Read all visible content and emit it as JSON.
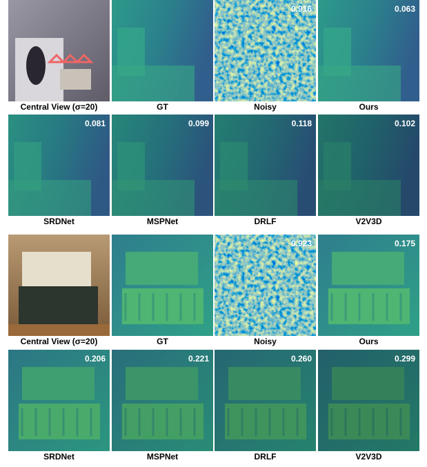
{
  "figure": {
    "rows": [
      {
        "panels": [
          {
            "caption": "Central View (σ=20)"
          },
          {
            "caption": "GT"
          },
          {
            "caption": "Noisy",
            "score": "0.916"
          },
          {
            "caption": "Ours",
            "score": "0.063"
          }
        ]
      },
      {
        "panels": [
          {
            "caption": "SRDNet",
            "score": "0.081"
          },
          {
            "caption": "MSPNet",
            "score": "0.099"
          },
          {
            "caption": "DRLF",
            "score": "0.118"
          },
          {
            "caption": "V2V3D",
            "score": "0.102"
          }
        ]
      },
      {
        "panels": [
          {
            "caption": "Central View (σ=20)"
          },
          {
            "caption": "GT"
          },
          {
            "caption": "Noisy",
            "score": "0.923"
          },
          {
            "caption": "Ours",
            "score": "0.175"
          }
        ]
      },
      {
        "panels": [
          {
            "caption": "SRDNet",
            "score": "0.206"
          },
          {
            "caption": "MSPNet",
            "score": "0.221"
          },
          {
            "caption": "DRLF",
            "score": "0.260"
          },
          {
            "caption": "V2V3D",
            "score": "0.299"
          }
        ]
      }
    ]
  }
}
